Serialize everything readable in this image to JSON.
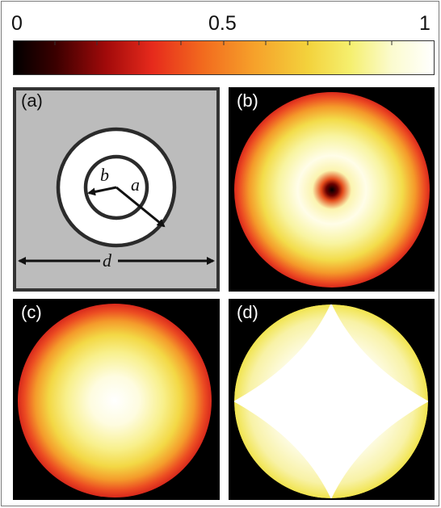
{
  "colorbar": {
    "ticks": [
      "0",
      "0.5",
      "1"
    ],
    "tick_values": [
      0,
      0.5,
      1
    ],
    "colormap": "hot",
    "stops": [
      "#000000",
      "#5a0000",
      "#c81414",
      "#ee3c1e",
      "#f57b1f",
      "#f8ad2a",
      "#f5e34a",
      "#fbfab4",
      "#ffffff"
    ]
  },
  "panels": [
    {
      "label": "(a)",
      "type": "schematic",
      "colors": {
        "background": "#bcbcbc",
        "annulus": "#ffffff",
        "outline": "#2b2b2b"
      },
      "symbols": {
        "inner_radius": "b",
        "outer_radius": "a",
        "period": "d"
      }
    },
    {
      "label": "(b)",
      "type": "intensity-map",
      "description_colors": [
        "#1a0000",
        "#ffffff",
        "#f4e24a",
        "#e43521"
      ]
    },
    {
      "label": "(c)",
      "type": "intensity-map"
    },
    {
      "label": "(d)",
      "type": "intensity-map"
    }
  ]
}
